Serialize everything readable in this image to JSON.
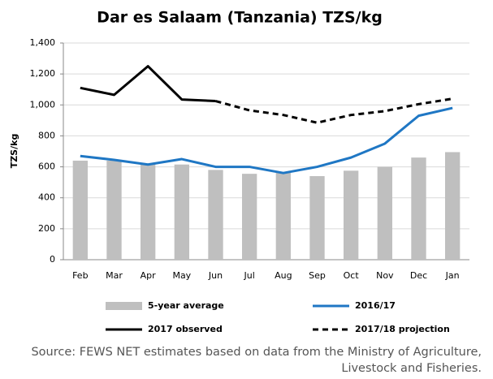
{
  "chart_data": {
    "type": "bar-line",
    "title": "Dar es Salaam (Tanzania) TZS/kg",
    "y_label": "TZS/kg",
    "source": "Source: FEWS NET estimates based on data from the Ministry of Agriculture, Livestock and Fisheries.",
    "categories": [
      "Feb",
      "Mar",
      "Apr",
      "May",
      "Jun",
      "Jul",
      "Aug",
      "Sep",
      "Oct",
      "Nov",
      "Dec",
      "Jan"
    ],
    "ylim": [
      0,
      1400
    ],
    "yticks": [
      0,
      200,
      400,
      600,
      800,
      {
        "value": 1000,
        "label": "1,000"
      },
      {
        "value": 1200,
        "label": "1,200"
      },
      {
        "value": 1400,
        "label": "1,400"
      }
    ],
    "series": [
      {
        "name": "5-year average",
        "type": "bar",
        "color": "#bfbfbf",
        "values": [
          640,
          640,
          615,
          615,
          580,
          555,
          565,
          540,
          575,
          600,
          660,
          695
        ]
      },
      {
        "name": "2016/17",
        "type": "line",
        "color": "#1f77c4",
        "values": [
          670,
          645,
          615,
          650,
          600,
          600,
          560,
          600,
          660,
          750,
          930,
          980
        ]
      },
      {
        "name": "2017 observed",
        "type": "line",
        "color": "#000000",
        "values": [
          1110,
          1065,
          1250,
          1035,
          1025,
          null,
          null,
          null,
          null,
          null,
          null,
          null
        ]
      },
      {
        "name": "2017/18 projection",
        "type": "line",
        "dashed": true,
        "color": "#000000",
        "values": [
          null,
          null,
          null,
          null,
          1025,
          965,
          935,
          885,
          935,
          960,
          1005,
          1040
        ]
      }
    ]
  }
}
